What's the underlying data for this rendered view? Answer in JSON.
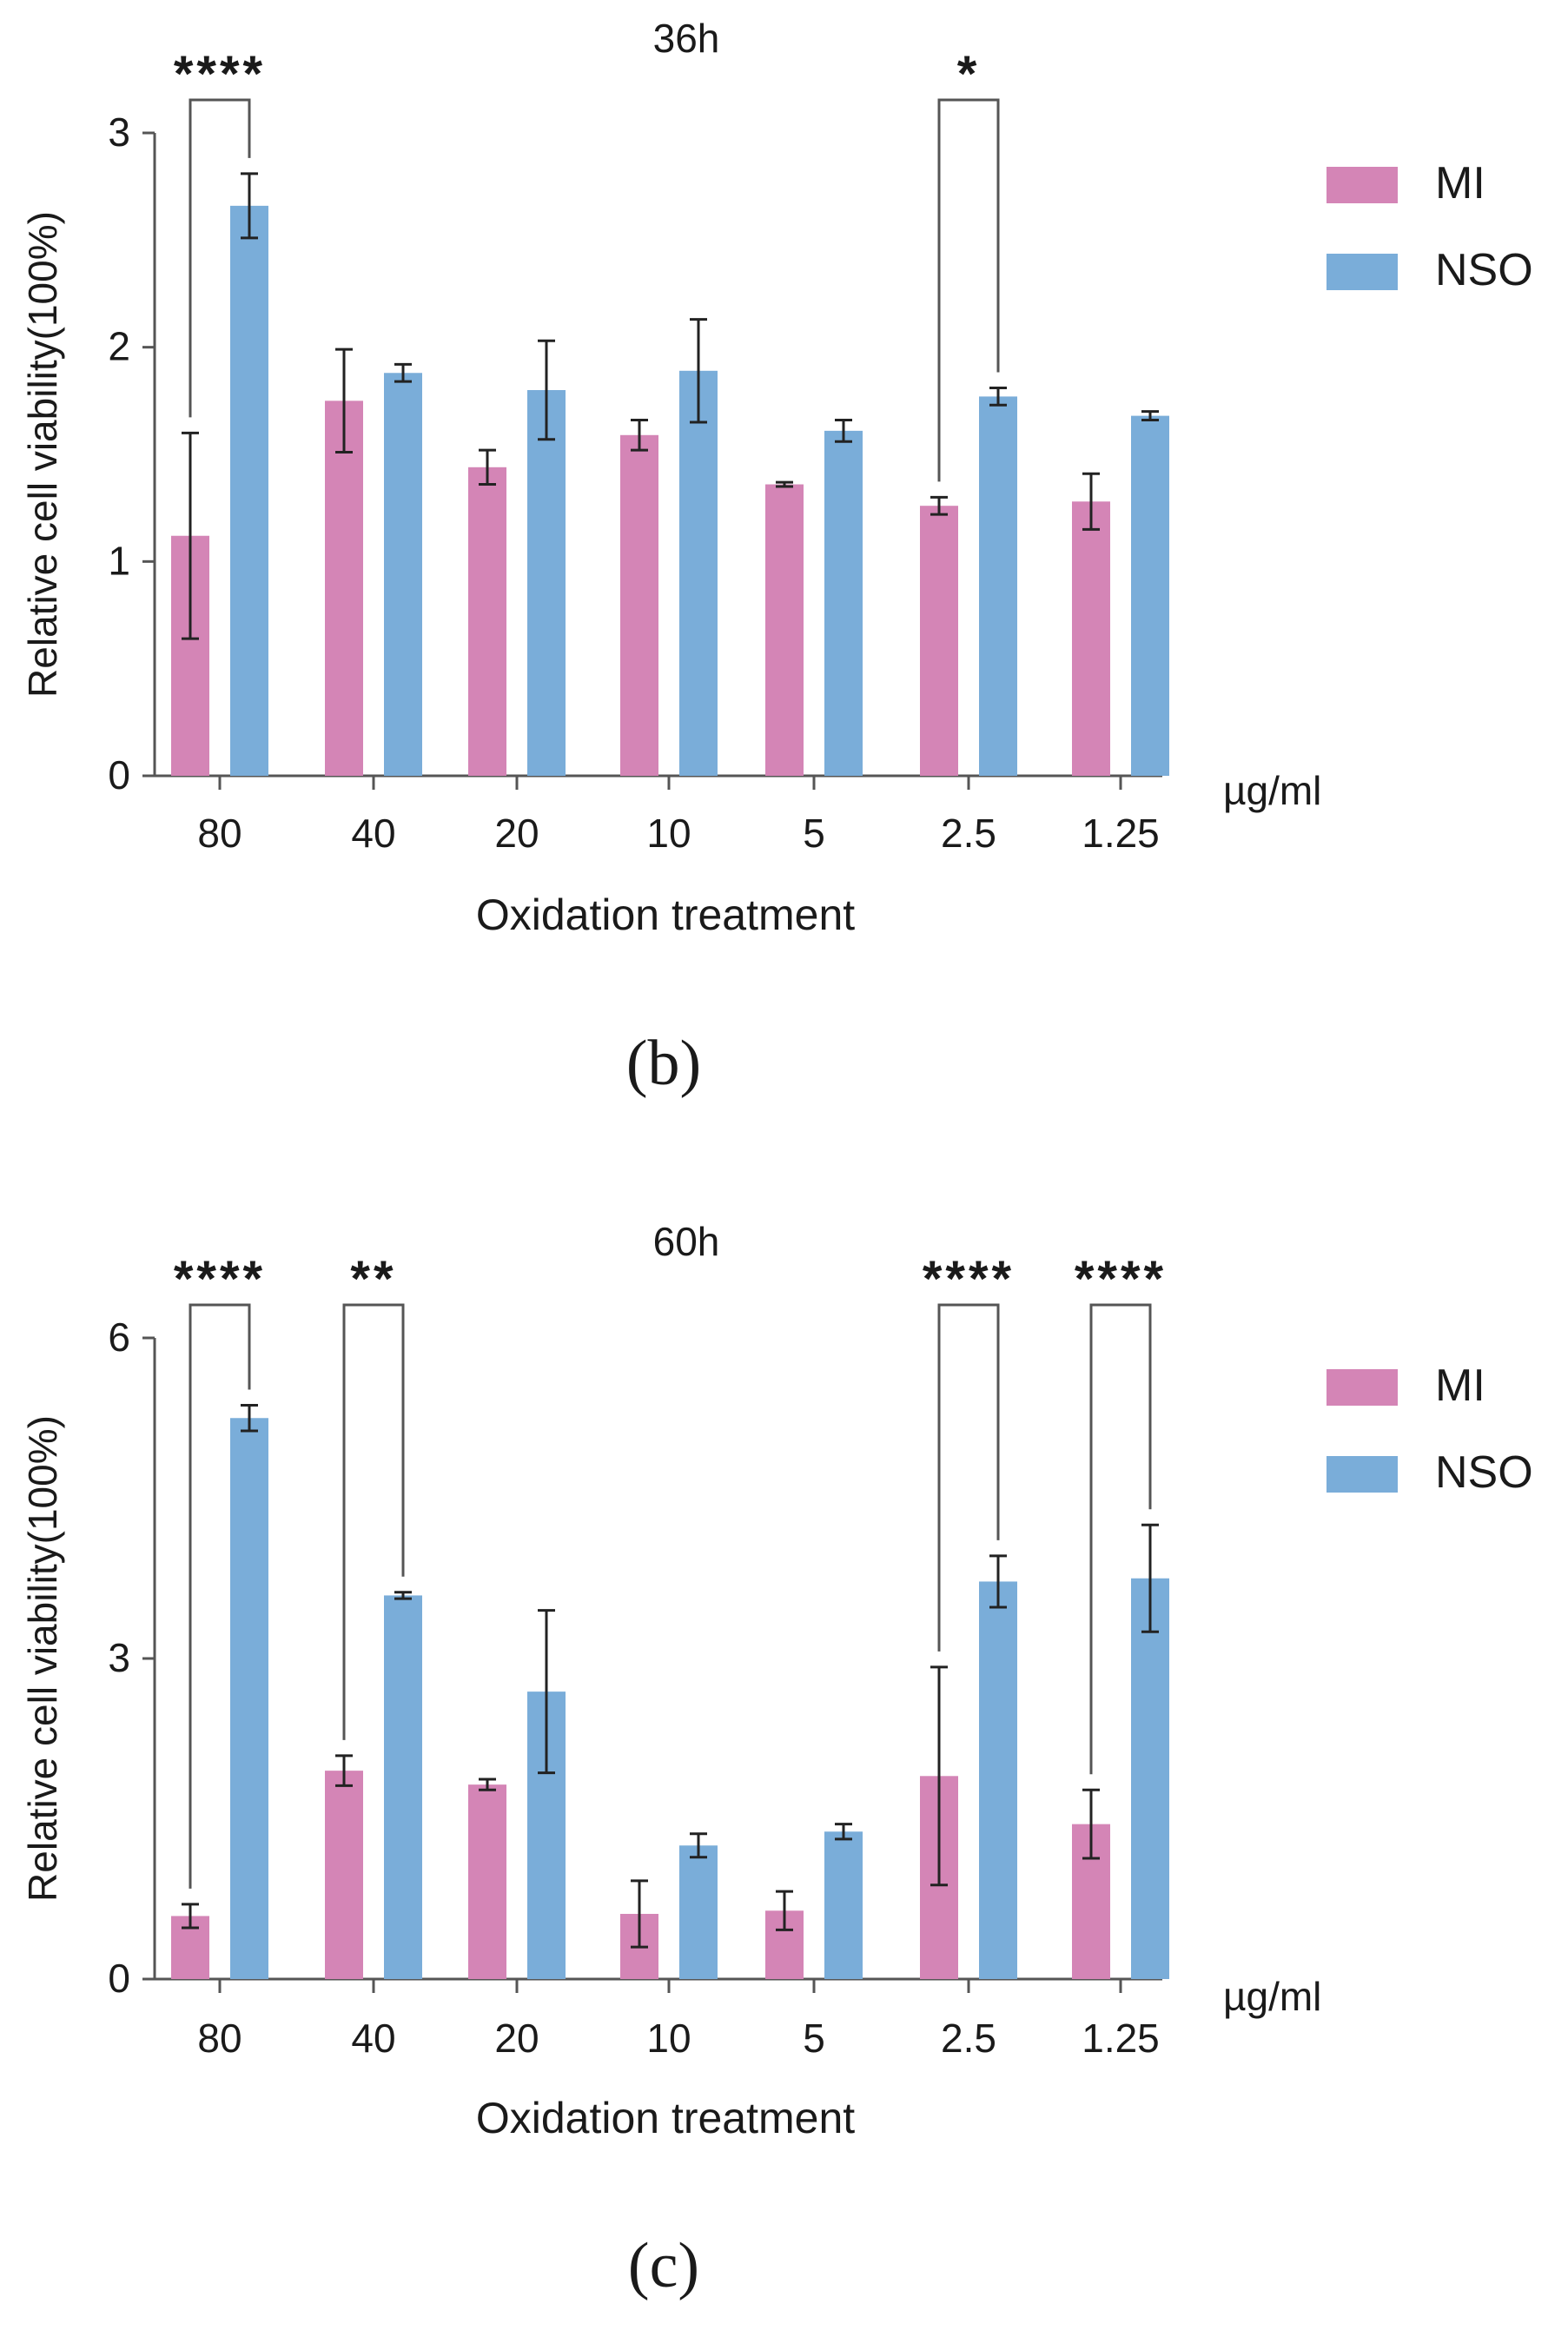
{
  "chart_data": [
    {
      "type": "bar",
      "title": "36h",
      "panel_label": "(b)",
      "xlabel": "Oxidation treatment",
      "ylabel": "Relative cell viability(100%)",
      "unit_label": "µg/ml",
      "categories": [
        "80",
        "40",
        "20",
        "10",
        "5",
        "2.5",
        "1.25"
      ],
      "ylim": [
        0,
        3
      ],
      "yticks": [
        "0",
        "1",
        "2",
        "3"
      ],
      "series": [
        {
          "name": "MI",
          "color": "#d485b6",
          "values": [
            1.12,
            1.75,
            1.44,
            1.59,
            1.36,
            1.26,
            1.28
          ],
          "errors": [
            0.48,
            0.24,
            0.08,
            0.07,
            0.01,
            0.04,
            0.13
          ]
        },
        {
          "name": "NSO",
          "color": "#7aadd9",
          "values": [
            2.66,
            1.88,
            1.8,
            1.89,
            1.61,
            1.77,
            1.68
          ],
          "errors": [
            0.15,
            0.04,
            0.23,
            0.24,
            0.05,
            0.04,
            0.02
          ]
        }
      ],
      "legend": [
        "MI",
        "NSO"
      ],
      "legend_position": "right",
      "significance": [
        {
          "category": "80",
          "label": "****"
        },
        {
          "category": "2.5",
          "label": "*"
        }
      ]
    },
    {
      "type": "bar",
      "title": "60h",
      "panel_label": "(c)",
      "xlabel": "Oxidation treatment",
      "ylabel": "Relative cell viability(100%)",
      "unit_label": "µg/ml",
      "categories": [
        "80",
        "40",
        "20",
        "10",
        "5",
        "2.5",
        "1.25"
      ],
      "ylim": [
        0,
        6
      ],
      "yticks": [
        "0",
        "3",
        "6"
      ],
      "series": [
        {
          "name": "MI",
          "color": "#d485b6",
          "values": [
            0.59,
            1.95,
            1.82,
            0.61,
            0.64,
            1.9,
            1.45
          ],
          "errors": [
            0.11,
            0.14,
            0.05,
            0.31,
            0.18,
            1.02,
            0.32
          ]
        },
        {
          "name": "NSO",
          "color": "#7aadd9",
          "values": [
            5.25,
            3.59,
            2.69,
            1.25,
            1.38,
            3.72,
            3.75
          ],
          "errors": [
            0.12,
            0.03,
            0.76,
            0.11,
            0.07,
            0.24,
            0.5
          ]
        }
      ],
      "legend": [
        "MI",
        "NSO"
      ],
      "legend_position": "right",
      "significance": [
        {
          "category": "80",
          "label": "****"
        },
        {
          "category": "40",
          "label": "**"
        },
        {
          "category": "2.5",
          "label": "****"
        },
        {
          "category": "1.25",
          "label": "****"
        }
      ]
    }
  ]
}
